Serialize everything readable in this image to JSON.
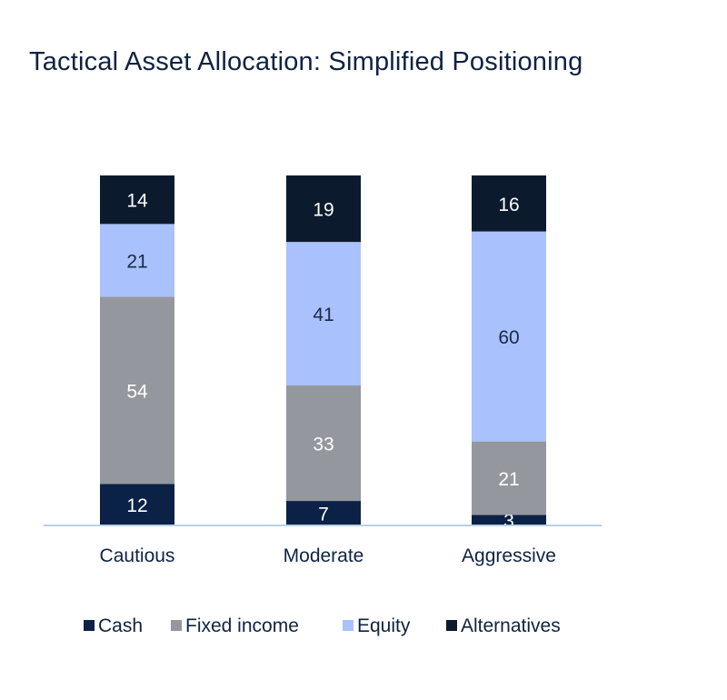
{
  "chart_data": {
    "type": "bar",
    "stacked": true,
    "title": "Tactical Asset Allocation: Simplified Positioning",
    "xlabel": "",
    "ylabel": "",
    "categories": [
      "Cautious",
      "Moderate",
      "Aggressive"
    ],
    "series": [
      {
        "name": "Cash",
        "color": "#0b2145",
        "values": [
          12,
          7,
          3
        ]
      },
      {
        "name": "Fixed income",
        "color": "#95979f",
        "values": [
          54,
          33,
          21
        ]
      },
      {
        "name": "Equity",
        "color": "#a9c1fd",
        "values": [
          21,
          41,
          60
        ]
      },
      {
        "name": "Alternatives",
        "color": "#0c1a2e",
        "values": [
          14,
          19,
          16
        ]
      }
    ],
    "label_colors": [
      "#ffffff",
      "#ffffff",
      "#1b2a45",
      "#ffffff"
    ],
    "axis_color": "#b9d1e6",
    "text_color": "#0f2341",
    "legend_position": "bottom",
    "grid": false
  }
}
